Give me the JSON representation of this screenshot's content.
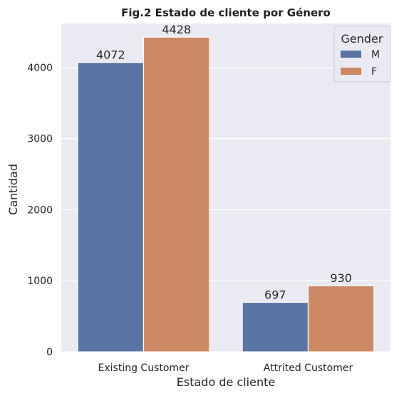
{
  "chart_data": {
    "type": "bar",
    "title": "Fig.2 Estado de cliente por Género",
    "xlabel": "Estado de cliente",
    "ylabel": "Cantidad",
    "categories": [
      "Existing Customer",
      "Attrited Customer"
    ],
    "series": [
      {
        "name": "M",
        "values": [
          4072,
          697
        ],
        "color": "#5975A4"
      },
      {
        "name": "F",
        "values": [
          4428,
          930
        ],
        "color": "#CC8963"
      }
    ],
    "ylim": [
      0,
      4620
    ],
    "yticks": [
      0,
      1000,
      2000,
      3000,
      4000
    ],
    "legend": {
      "title": "Gender",
      "placement": "top-right"
    },
    "grid": true,
    "background_color": "#EAEAF2",
    "grid_color": "#FFFFFF"
  }
}
